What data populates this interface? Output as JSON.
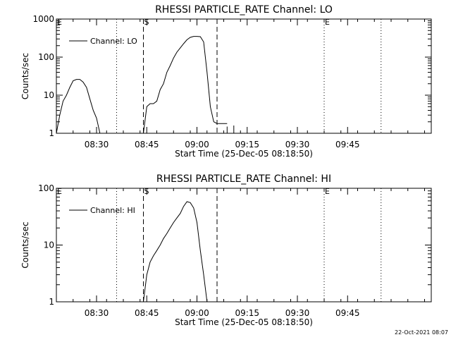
{
  "chart_data": [
    {
      "type": "line",
      "title": "RHESSI PARTICLE_RATE Channel: LO",
      "xlabel": "Start Time (25-Dec-05 08:18:50)",
      "ylabel": "Counts/sec",
      "yscale": "log",
      "ylim": [
        1,
        1000
      ],
      "yticks": [
        "1",
        "10",
        "100",
        "1000"
      ],
      "xlim_minutes": [
        0,
        112
      ],
      "xticks": [
        "08:30",
        "08:45",
        "09:00",
        "09:15",
        "09:30",
        "09:45"
      ],
      "legend": {
        "label": "Channel: LO",
        "position": "top-left"
      },
      "event_labels": [
        "E",
        "S",
        "E"
      ],
      "dotted_lines": [
        "08:36",
        "09:38",
        "09:55"
      ],
      "dashed_lines": [
        "08:44",
        "09:06"
      ],
      "series": [
        {
          "name": "Channel: LO",
          "segments": [
            [
              [
                "08:18",
                1
              ],
              [
                "08:19",
                3
              ],
              [
                "08:20",
                7
              ],
              [
                "08:21",
                10
              ],
              [
                "08:22",
                16
              ],
              [
                "08:23",
                24
              ],
              [
                "08:24",
                26
              ],
              [
                "08:25",
                26
              ],
              [
                "08:26",
                22
              ],
              [
                "08:27",
                16
              ],
              [
                "08:28",
                8
              ],
              [
                "08:29",
                4
              ],
              [
                "08:30",
                2.5
              ],
              [
                "08:31",
                1
              ]
            ],
            [
              [
                "08:44",
                1
              ],
              [
                "08:45",
                5
              ],
              [
                "08:46",
                6
              ],
              [
                "08:47",
                6
              ],
              [
                "08:48",
                7
              ],
              [
                "08:49",
                14
              ],
              [
                "08:50",
                20
              ],
              [
                "08:51",
                40
              ],
              [
                "08:52",
                60
              ],
              [
                "08:53",
                95
              ],
              [
                "08:54",
                135
              ],
              [
                "08:55",
                175
              ],
              [
                "08:56",
                225
              ],
              [
                "08:57",
                285
              ],
              [
                "08:58",
                330
              ],
              [
                "08:59",
                350
              ],
              [
                "09:00",
                350
              ],
              [
                "09:01",
                345
              ],
              [
                "09:02",
                250
              ],
              [
                "09:03",
                40
              ],
              [
                "09:04",
                5
              ],
              [
                "09:05",
                2
              ],
              [
                "09:06",
                1.8
              ],
              [
                "09:07",
                1.8
              ],
              [
                "09:08",
                1.8
              ],
              [
                "09:09",
                1.8
              ]
            ],
            [
              [
                "09:09",
                1.5
              ],
              [
                "09:09",
                1
              ]
            ],
            [
              [
                "09:11",
                1.6
              ],
              [
                "09:11",
                1
              ]
            ]
          ]
        }
      ]
    },
    {
      "type": "line",
      "title": "RHESSI PARTICLE_RATE Channel: HI",
      "xlabel": "Start Time (25-Dec-05 08:18:50)",
      "ylabel": "Counts/sec",
      "yscale": "log",
      "ylim": [
        1,
        100
      ],
      "yticks": [
        "1",
        "10",
        "100"
      ],
      "xlim_minutes": [
        0,
        112
      ],
      "xticks": [
        "08:30",
        "08:45",
        "09:00",
        "09:15",
        "09:30",
        "09:45"
      ],
      "legend": {
        "label": "Channel: HI",
        "position": "top-left"
      },
      "event_labels": [
        "E",
        "S",
        "E"
      ],
      "dotted_lines": [
        "08:36",
        "09:38",
        "09:55"
      ],
      "dashed_lines": [
        "08:44",
        "09:06"
      ],
      "series": [
        {
          "name": "Channel: HI",
          "segments": [
            [
              [
                "08:44",
                1
              ],
              [
                "08:45",
                3
              ],
              [
                "08:46",
                5
              ],
              [
                "08:47",
                6.5
              ],
              [
                "08:48",
                8
              ],
              [
                "08:49",
                10
              ],
              [
                "08:50",
                13
              ],
              [
                "08:51",
                16
              ],
              [
                "08:52",
                20
              ],
              [
                "08:53",
                25
              ],
              [
                "08:54",
                30
              ],
              [
                "08:55",
                36
              ],
              [
                "08:56",
                48
              ],
              [
                "08:57",
                58
              ],
              [
                "08:58",
                56
              ],
              [
                "08:59",
                45
              ],
              [
                "09:00",
                25
              ],
              [
                "09:01",
                8
              ],
              [
                "09:02",
                3
              ],
              [
                "09:03",
                1
              ]
            ]
          ]
        }
      ]
    }
  ],
  "footer": {
    "timestamp": "22-Oct-2021 08:07"
  }
}
